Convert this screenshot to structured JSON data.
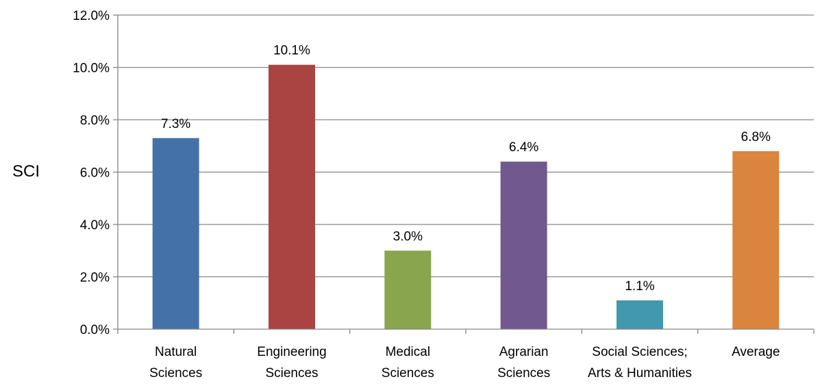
{
  "chart_data": {
    "type": "bar",
    "title": "",
    "xlabel": "",
    "ylabel": "SCI",
    "ylim": [
      0,
      12
    ],
    "y_ticks": [
      "0.0%",
      "2.0%",
      "4.0%",
      "6.0%",
      "8.0%",
      "10.0%",
      "12.0%"
    ],
    "grid": "horizontal",
    "legend": "none",
    "categories": [
      [
        "Natural",
        "Sciences"
      ],
      [
        "Engineering",
        "Sciences"
      ],
      [
        "Medical",
        "Sciences"
      ],
      [
        "Agrarian",
        "Sciences"
      ],
      [
        "Social Sciences;",
        "Arts & Humanities"
      ],
      [
        "Average"
      ]
    ],
    "values": [
      7.3,
      10.1,
      3.0,
      6.4,
      1.1,
      6.8
    ],
    "data_labels": [
      "7.3%",
      "10.1%",
      "3.0%",
      "6.4%",
      "1.1%",
      "6.8%"
    ],
    "colors": [
      "#4472A8",
      "#A94442",
      "#89A54E",
      "#71588F",
      "#4198AF",
      "#DB843D"
    ],
    "gridline_color": "#868686",
    "axis_color": "#868686"
  }
}
